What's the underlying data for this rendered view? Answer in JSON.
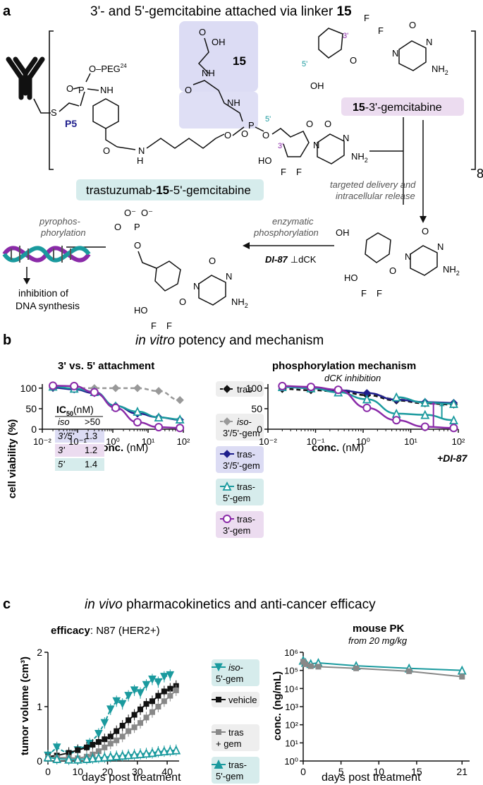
{
  "panel_a": {
    "letter": "a",
    "title": "3'- and 5'-gemcitabine attached via linker ",
    "title_bold": "15",
    "linker_label": "15",
    "peg_label": "O–PEG",
    "peg_sup": "24",
    "p5_label": "P5",
    "oh_label": "OH",
    "o_label": "O",
    "nh_label": "NH",
    "n_label": "N",
    "h_label": "H",
    "s_label": "S",
    "p_label": "P",
    "nh2_label": "NH",
    "nh2_sub": "2",
    "f_label": "F",
    "ho_label": "HO",
    "pos_3": "3'",
    "pos_5": "5'",
    "drug_box_bold": "15",
    "drug_box_text": "-3'-gemcitabine",
    "conjugate_label": "trastuzumab-",
    "conjugate_bold": "15",
    "conjugate_rest": "-5'-gemcitabine",
    "multiplier": "8",
    "release_line1": "targeted delivery and",
    "release_line2": "intracellular release",
    "enzymatic_line1": "enzymatic",
    "enzymatic_line2": "phosphorylation",
    "di87_label": "DI-87",
    "dck_label": "⊥dCK",
    "pyro_line1": "pyrophos-",
    "pyro_line2": "phorylation",
    "inhibit_line1": "inhibition of",
    "inhibit_line2": "DNA synthesis",
    "o_minus": "O⁻"
  },
  "panel_b": {
    "letter": "b",
    "title_italic": "in vitro",
    "title_rest": " potency and mechanism",
    "left_title": "3' vs. 5' attachment",
    "right_title": "phosphorylation mechanism",
    "right_subtitle": "dCK inhibition",
    "ylabel": "cell viability (%)",
    "xlabel_bold": "conc.",
    "xlabel_unit": " (nM)",
    "ic50_header": "IC",
    "ic50_sub": "50",
    "ic50_unit": "(nM)",
    "ic50_rows": [
      {
        "label": "iso",
        "value": ">50",
        "bg": ""
      },
      {
        "label": "3'/5'",
        "value": "1.3",
        "bg": "#dcdcf4"
      },
      {
        "label": "3'",
        "value": "1.2",
        "bg": "#ecdcf0"
      },
      {
        "label": "5'",
        "value": "1.4",
        "bg": "#d6ecec"
      }
    ],
    "di87_annotation": "+DI-87",
    "legend": [
      {
        "line1": "tras",
        "line2": "",
        "color": "#111111",
        "bg": "#eeeeee",
        "marker": "diamond",
        "dash": true,
        "italic1": ""
      },
      {
        "line1": "-",
        "line2": "3'/5'-gem",
        "color": "#999999",
        "bg": "#eeeeee",
        "marker": "diamond",
        "dash": true,
        "italic1": "iso"
      },
      {
        "line1": "tras-",
        "line2": "3'/5'-gem",
        "color": "#1e1e8c",
        "bg": "#dcdcf4",
        "marker": "diamond",
        "dash": false,
        "italic1": ""
      },
      {
        "line1": "tras-",
        "line2": "5'-gem",
        "color": "#1a9a9e",
        "bg": "#d6ecec",
        "marker": "triangle",
        "dash": false,
        "italic1": ""
      },
      {
        "line1": "tras-",
        "line2": "3'-gem",
        "color": "#8a2aa8",
        "bg": "#ecdcf0",
        "marker": "circle",
        "dash": false,
        "italic1": ""
      }
    ]
  },
  "panel_c": {
    "letter": "c",
    "title_italic": "in vivo",
    "title_rest": " pharmacokinetics and anti-cancer efficacy",
    "left_title_bold": "efficacy",
    "left_title_rest": ": N87 (HER2+)",
    "right_title": "mouse PK",
    "right_subtitle": "from 20 mg/kg",
    "left_ylabel": "tumor volume (cm³)",
    "right_ylabel": "conc. (ng/mL)",
    "xlabel": "days post treatment",
    "legend": [
      {
        "italic": "iso",
        "line1": "-",
        "line2": "5'-gem",
        "color": "#1a9a9e",
        "bg": "#d6ecec",
        "marker": "tri-down"
      },
      {
        "italic": "",
        "line1": "vehicle",
        "line2": "",
        "color": "#111111",
        "bg": "#eeeeee",
        "marker": "square"
      },
      {
        "italic": "",
        "line1": "tras",
        "line2": "+ gem",
        "color": "#888888",
        "bg": "#eeeeee",
        "marker": "square"
      },
      {
        "italic": "",
        "line1": "tras-",
        "line2": "5'-gem",
        "color": "#1a9a9e",
        "bg": "#d6ecec",
        "marker": "triangle"
      }
    ]
  },
  "chart_data": [
    {
      "type": "line",
      "title": "3' vs. 5' attachment",
      "xlabel": "conc. (nM)",
      "ylabel": "cell viability (%)",
      "xscale": "log",
      "xlim": [
        0.01,
        100
      ],
      "ylim": [
        0,
        110
      ],
      "xticks": [
        "10⁻²",
        "10⁻¹",
        "10⁰",
        "10¹",
        "10²"
      ],
      "yticks": [
        0,
        50,
        100
      ],
      "series": [
        {
          "name": "iso-3'/5'-gem",
          "color": "#999999",
          "dash": true,
          "marker": "diamond",
          "x": [
            0.02,
            0.08,
            0.3,
            1.2,
            5,
            20,
            80
          ],
          "y": [
            100,
            100,
            100,
            100,
            100,
            93,
            71
          ]
        },
        {
          "name": "tras-3'/5'-gem",
          "color": "#1e1e8c",
          "dash": false,
          "marker": "diamond",
          "x": [
            0.02,
            0.08,
            0.3,
            1.2,
            5,
            20,
            80
          ],
          "y": [
            101,
            97,
            88,
            57,
            38,
            29,
            23
          ]
        },
        {
          "name": "tras-5'-gem",
          "color": "#1a9a9e",
          "dash": false,
          "marker": "triangle",
          "x": [
            0.02,
            0.08,
            0.3,
            1.2,
            5,
            20,
            80
          ],
          "y": [
            104,
            99,
            91,
            56,
            43,
            29,
            24
          ]
        },
        {
          "name": "tras-3'-gem",
          "color": "#8a2aa8",
          "dash": false,
          "marker": "circle",
          "x": [
            0.02,
            0.08,
            0.3,
            1.2,
            5,
            20,
            80
          ],
          "y": [
            106,
            105,
            90,
            52,
            17,
            5,
            3
          ]
        }
      ]
    },
    {
      "type": "line",
      "title": "phosphorylation mechanism",
      "subtitle": "dCK inhibition",
      "xlabel": "conc. (nM)",
      "xscale": "log",
      "xlim": [
        0.01,
        100
      ],
      "ylim": [
        0,
        110
      ],
      "xticks": [
        "10⁻²",
        "10⁻¹",
        "10⁰",
        "10¹",
        "10²"
      ],
      "yticks": [
        0,
        50,
        100
      ],
      "series": [
        {
          "name": "tras",
          "color": "#111111",
          "dash": true,
          "marker": "diamond",
          "x": [
            0.02,
            0.08,
            0.3,
            1.2,
            5,
            20,
            80
          ],
          "y": [
            98,
            95,
            92,
            83,
            70,
            63,
            60
          ]
        },
        {
          "name": "iso-3'/5'-gem",
          "color": "#999999",
          "dash": true,
          "marker": "diamond",
          "x": [
            0.02,
            0.08,
            0.3,
            1.2,
            5,
            20,
            80
          ],
          "y": [
            103,
            101,
            96,
            88,
            74,
            65,
            63
          ]
        },
        {
          "name": "tras-3'/5'-gem",
          "color": "#1e1e8c",
          "dash": false,
          "marker": "diamond",
          "x": [
            0.02,
            0.08,
            0.3,
            1.2,
            5,
            20,
            80
          ],
          "y": [
            103,
            100,
            95,
            88,
            72,
            66,
            64
          ]
        },
        {
          "name": "tras-5'-gem",
          "color": "#1a9a9e",
          "dash": false,
          "marker": "triangle",
          "x": [
            0.02,
            0.08,
            0.3,
            1.2,
            5,
            20,
            80
          ],
          "y": [
            103,
            100,
            90,
            73,
            38,
            35,
            22
          ]
        },
        {
          "name": "tras-3'-gem",
          "color": "#8a2aa8",
          "dash": false,
          "marker": "circle",
          "x": [
            0.02,
            0.08,
            0.3,
            1.2,
            5,
            20,
            80
          ],
          "y": [
            105,
            103,
            96,
            52,
            22,
            6,
            3
          ]
        },
        {
          "name": "tras-5'-gem (upper)",
          "color": "#1a9a9e",
          "dash": false,
          "marker": "triangle",
          "x": [
            5,
            20,
            80
          ],
          "y": [
            78,
            65,
            62
          ]
        }
      ]
    },
    {
      "type": "line",
      "title": "efficacy: N87 (HER2+)",
      "xlabel": "days post treatment",
      "ylabel": "tumor volume (cm³)",
      "xlim": [
        0,
        44
      ],
      "ylim": [
        0,
        2
      ],
      "xticks": [
        0,
        10,
        20,
        30,
        40
      ],
      "yticks": [
        0,
        1,
        2
      ],
      "series": [
        {
          "name": "iso-5'-gem",
          "color": "#1a9a9e",
          "marker": "tri-down",
          "dash": true,
          "x": [
            0,
            3,
            7,
            10,
            14,
            17,
            19,
            21,
            23,
            25,
            27,
            29,
            31,
            33,
            35,
            37,
            39,
            41
          ],
          "y": [
            0.1,
            0.25,
            0.12,
            0.2,
            0.32,
            0.5,
            0.7,
            0.95,
            1.1,
            1.05,
            1.2,
            1.3,
            1.25,
            1.4,
            1.5,
            1.45,
            1.55,
            1.58
          ]
        },
        {
          "name": "vehicle",
          "color": "#111111",
          "marker": "square",
          "dash": false,
          "x": [
            0,
            3,
            7,
            10,
            13,
            15,
            17,
            19,
            21,
            23,
            25,
            27,
            29,
            31,
            33,
            35,
            37,
            39,
            41,
            43
          ],
          "y": [
            0.08,
            0.1,
            0.15,
            0.2,
            0.25,
            0.3,
            0.35,
            0.4,
            0.45,
            0.55,
            0.65,
            0.75,
            0.85,
            0.95,
            1.05,
            1.1,
            1.2,
            1.28,
            1.33,
            1.38
          ]
        },
        {
          "name": "tras + gem",
          "color": "#888888",
          "marker": "square",
          "dash": false,
          "x": [
            0,
            3,
            7,
            10,
            13,
            15,
            17,
            19,
            21,
            23,
            25,
            27,
            29,
            31,
            33,
            35,
            37,
            39,
            41,
            43
          ],
          "y": [
            0.07,
            0.06,
            0.06,
            0.05,
            0.08,
            0.12,
            0.18,
            0.25,
            0.32,
            0.38,
            0.45,
            0.55,
            0.62,
            0.7,
            0.8,
            0.9,
            1.0,
            1.1,
            1.2,
            1.3
          ]
        },
        {
          "name": "tras-5'-gem",
          "color": "#1a9a9e",
          "marker": "triangle",
          "dash": false,
          "x": [
            0,
            3,
            7,
            10,
            13,
            15,
            17,
            19,
            21,
            23,
            25,
            27,
            29,
            31,
            33,
            35,
            37,
            39,
            41,
            43
          ],
          "y": [
            0.07,
            0.04,
            0.03,
            0.03,
            0.04,
            0.05,
            0.06,
            0.07,
            0.08,
            0.09,
            0.1,
            0.11,
            0.12,
            0.13,
            0.14,
            0.15,
            0.17,
            0.18,
            0.19,
            0.2
          ]
        }
      ]
    },
    {
      "type": "line",
      "title": "mouse PK",
      "subtitle": "from 20 mg/kg",
      "xlabel": "days post treatment",
      "ylabel": "conc. (ng/mL)",
      "yscale": "log",
      "xlim": [
        0,
        22
      ],
      "ylim": [
        1,
        1000000
      ],
      "xticks": [
        0,
        5,
        10,
        15,
        21
      ],
      "yticks": [
        "10⁰",
        "10¹",
        "10²",
        "10³",
        "10⁴",
        "10⁵",
        "10⁶"
      ],
      "series": [
        {
          "name": "tras-5'-gem",
          "color": "#1a9a9e",
          "marker": "triangle",
          "x": [
            0,
            0.3,
            1,
            2,
            7,
            14,
            21
          ],
          "y": [
            350000,
            270000,
            230000,
            260000,
            180000,
            130000,
            100000
          ]
        },
        {
          "name": "tras + gem",
          "color": "#888888",
          "marker": "square",
          "x": [
            0,
            0.3,
            1,
            2,
            7,
            14,
            21
          ],
          "y": [
            300000,
            220000,
            170000,
            160000,
            130000,
            90000,
            45000
          ]
        }
      ]
    }
  ]
}
